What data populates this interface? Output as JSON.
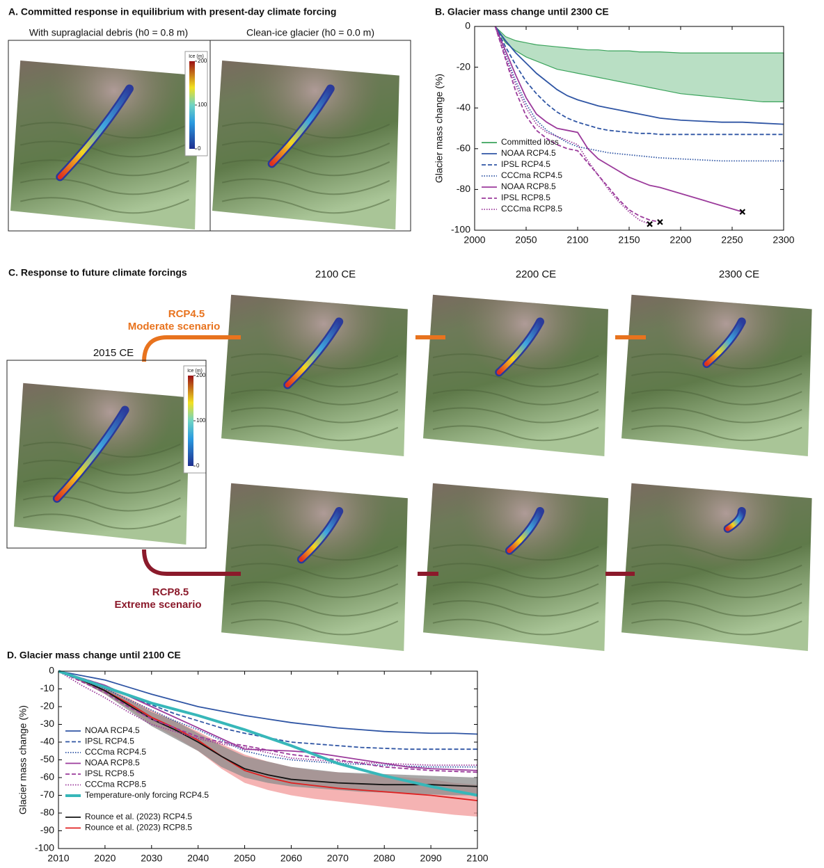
{
  "panel_a": {
    "title": "A. Committed response in equilibrium with present-day climate forcing",
    "subtitles": [
      "With supraglacial debris (h0 = 0.8 m)",
      "Clean-ice glacier (h0 = 0.0 m)"
    ],
    "colorbar": {
      "label": "Ice (m)",
      "ticks": [
        0,
        100,
        200
      ]
    }
  },
  "panel_c": {
    "title": "C. Response to future climate forcings",
    "start": "2015 CE",
    "columns": [
      "2100 CE",
      "2200 CE",
      "2300 CE"
    ],
    "scenarios": [
      {
        "name": "RCP4.5",
        "description": "Moderate scenario",
        "color": "#e8731e"
      },
      {
        "name": "RCP8.5",
        "description": "Extreme scenario",
        "color": "#8b1a2b"
      }
    ],
    "colorbar": {
      "label": "Ice (m)",
      "ticks": [
        0,
        100,
        200
      ]
    }
  },
  "chart_data": [
    {
      "type": "line",
      "title": "B. Glacier mass change until 2300 CE",
      "y_label": "Glacier mass change (%)",
      "x": [
        2020,
        2030,
        2040,
        2050,
        2060,
        2070,
        2080,
        2090,
        2100,
        2110,
        2120,
        2130,
        2140,
        2150,
        2160,
        2170,
        2180,
        2200,
        2220,
        2240,
        2260,
        2280,
        2300
      ],
      "xlim": [
        2000,
        2300
      ],
      "xticks": [
        2000,
        2050,
        2100,
        2150,
        2200,
        2250,
        2300
      ],
      "ylim": [
        -100,
        0
      ],
      "yticks": [
        -100,
        -80,
        -60,
        -40,
        -20,
        0
      ],
      "grid": false,
      "legend": "lower left",
      "series": [
        {
          "name": "Committed loss",
          "color": "#3aa35b",
          "band_color": "#b9dfc4",
          "dash": "solid",
          "upper": [
            0,
            -5,
            -7,
            -8,
            -9,
            -9.5,
            -10,
            -10.5,
            -11,
            -11.5,
            -11.5,
            -12,
            -12,
            -12,
            -12.5,
            -12.5,
            -12.5,
            -13,
            -13,
            -13,
            -13,
            -13,
            -13
          ],
          "lower": [
            0,
            -8,
            -12,
            -15,
            -17,
            -19,
            -21,
            -22,
            -23,
            -24,
            -25,
            -26,
            -27,
            -28,
            -29,
            -30,
            -31,
            -33,
            -34,
            -35,
            -36,
            -37,
            -37
          ]
        },
        {
          "name": "NOAA RCP4.5",
          "color": "#2f55a4",
          "dash": "solid",
          "values": [
            0,
            -7,
            -13,
            -18,
            -23,
            -27,
            -31,
            -34,
            -36,
            -37.5,
            -39,
            -40,
            -41,
            -42,
            -43,
            -44,
            -45,
            -46,
            -46.5,
            -47,
            -47,
            -47.5,
            -48
          ]
        },
        {
          "name": "IPSL RCP4.5",
          "color": "#2f55a4",
          "dash": "dashed",
          "values": [
            0,
            -10,
            -19,
            -27,
            -33,
            -38,
            -42,
            -45,
            -47,
            -48.5,
            -50,
            -51,
            -51.5,
            -52,
            -52.5,
            -52.5,
            -53,
            -53,
            -53,
            -53,
            -53,
            -53,
            -53
          ]
        },
        {
          "name": "CCCma RCP4.5",
          "color": "#2f55a4",
          "dash": "dotted",
          "values": [
            0,
            -14,
            -27,
            -38,
            -46,
            -51,
            -54,
            -57,
            -59,
            -60,
            -61,
            -62,
            -62.5,
            -63,
            -63.5,
            -64,
            -64.5,
            -65,
            -65.5,
            -66,
            -66,
            -66,
            -66
          ]
        },
        {
          "name": "NOAA RCP8.5",
          "color": "#9b3a9b",
          "dash": "solid",
          "end_marker": true,
          "values": [
            0,
            -12,
            -24,
            -35,
            -43,
            -47,
            -50,
            -51,
            -52,
            -60,
            -65,
            -68,
            -71,
            -74,
            -76,
            -78,
            -79,
            -82,
            -85,
            -88,
            -91,
            null,
            null
          ]
        },
        {
          "name": "IPSL RCP8.5",
          "color": "#9b3a9b",
          "dash": "dashed",
          "end_marker": true,
          "values": [
            0,
            -16,
            -32,
            -44,
            -51,
            -55,
            -58,
            -60,
            -61,
            -67,
            -73,
            -79,
            -85,
            -90,
            -93,
            -95,
            -96,
            null,
            null,
            null,
            null,
            null,
            null
          ]
        },
        {
          "name": "CCCma RCP8.5",
          "color": "#9b3a9b",
          "dash": "dotted",
          "end_marker": true,
          "values": [
            0,
            -15,
            -29,
            -40,
            -48,
            -52,
            -54,
            -56,
            -58,
            -66,
            -73,
            -80,
            -86,
            -91,
            -95,
            -97,
            null,
            null,
            null,
            null,
            null,
            null,
            null
          ]
        }
      ]
    },
    {
      "type": "line",
      "title": "D. Glacier mass change until 2100 CE",
      "y_label": "Glacier mass change (%)",
      "x": [
        2010,
        2015,
        2020,
        2025,
        2030,
        2035,
        2040,
        2045,
        2050,
        2055,
        2060,
        2065,
        2070,
        2075,
        2080,
        2085,
        2090,
        2095,
        2100
      ],
      "xlim": [
        2010,
        2100
      ],
      "xticks": [
        2010,
        2020,
        2030,
        2040,
        2050,
        2060,
        2070,
        2080,
        2090,
        2100
      ],
      "ylim": [
        -100,
        0
      ],
      "yticks": [
        -100,
        -90,
        -80,
        -70,
        -60,
        -50,
        -40,
        -30,
        -20,
        -10,
        0
      ],
      "grid": false,
      "legend": "lower left",
      "series": [
        {
          "name": "Rounce et al. (2023) RCP8.5",
          "color": "#e02020",
          "band_color": "#f29a9a",
          "dash": "solid",
          "legend_order": 9,
          "values": [
            0,
            -5,
            -11,
            -18,
            -26,
            -32,
            -39,
            -48,
            -56,
            -60,
            -63,
            -64.5,
            -66,
            -67,
            -68,
            -69,
            -70,
            -71.5,
            -73
          ],
          "upper": [
            0,
            -4,
            -9,
            -15,
            -22,
            -28,
            -34,
            -41,
            -47,
            -51,
            -54,
            -56,
            -57,
            -58,
            -59,
            -60,
            -61,
            -63,
            -64
          ],
          "lower": [
            0,
            -6,
            -13,
            -21,
            -30,
            -37,
            -45,
            -55,
            -63,
            -67,
            -70,
            -72,
            -73.5,
            -75,
            -76.5,
            -78,
            -79.5,
            -81,
            -82
          ]
        },
        {
          "name": "Rounce et al. (2023) RCP4.5",
          "color": "#111111",
          "band_color": "#8c8c8c",
          "dash": "solid",
          "legend_order": 8,
          "values": [
            0,
            -5,
            -11,
            -19,
            -27,
            -33,
            -40,
            -48,
            -55,
            -58.5,
            -61,
            -62,
            -63,
            -63.5,
            -64,
            -64,
            -64,
            -64.5,
            -65
          ],
          "upper": [
            0,
            -4,
            -9,
            -16,
            -23,
            -28,
            -35,
            -42,
            -48,
            -51,
            -54,
            -55.5,
            -57,
            -57.5,
            -58,
            -58.5,
            -59,
            -59.5,
            -60
          ],
          "lower": [
            0,
            -6,
            -13,
            -22,
            -31,
            -38,
            -45,
            -54,
            -60,
            -63,
            -65,
            -66,
            -67,
            -68,
            -68.5,
            -69,
            -69.5,
            -70,
            -70
          ]
        },
        {
          "name": "NOAA RCP4.5",
          "color": "#2f55a4",
          "dash": "solid",
          "legend_order": 0,
          "values": [
            0,
            -2.5,
            -5,
            -9,
            -13,
            -16.5,
            -20,
            -22.5,
            -25,
            -27,
            -29,
            -30.5,
            -32,
            -33,
            -34,
            -34.5,
            -35,
            -35,
            -35.5
          ]
        },
        {
          "name": "IPSL RCP4.5",
          "color": "#2f55a4",
          "dash": "dashed",
          "legend_order": 1,
          "values": [
            0,
            -4,
            -8,
            -14,
            -19,
            -24,
            -28,
            -32,
            -35,
            -37.5,
            -40,
            -41,
            -42,
            -43,
            -43.5,
            -44,
            -44,
            -44,
            -44
          ]
        },
        {
          "name": "CCCma RCP4.5",
          "color": "#2f55a4",
          "dash": "dotted",
          "legend_order": 2,
          "values": [
            0,
            -5,
            -10,
            -16,
            -22,
            -28,
            -33,
            -39,
            -45,
            -48,
            -50,
            -51,
            -52,
            -52.5,
            -53,
            -53.5,
            -54,
            -54,
            -54
          ]
        },
        {
          "name": "NOAA RCP8.5",
          "color": "#9b3a9b",
          "dash": "solid",
          "legend_order": 3,
          "values": [
            0,
            -4,
            -8,
            -14,
            -20,
            -26,
            -32,
            -38,
            -44,
            -44.5,
            -45,
            -46,
            -48,
            -50,
            -52,
            -54,
            -55,
            -55.5,
            -56
          ]
        },
        {
          "name": "IPSL RCP8.5",
          "color": "#9b3a9b",
          "dash": "dashed",
          "legend_order": 4,
          "values": [
            0,
            -6,
            -12,
            -20,
            -27,
            -32,
            -37,
            -40,
            -42,
            -44.5,
            -47,
            -48.5,
            -50,
            -52,
            -54,
            -55,
            -56,
            -56.5,
            -57
          ]
        },
        {
          "name": "CCCma RCP8.5",
          "color": "#9b3a9b",
          "dash": "dotted",
          "legend_order": 5,
          "values": [
            0,
            -8,
            -15,
            -23,
            -30,
            -34,
            -38,
            -41,
            -43,
            -46,
            -49,
            -50,
            -51,
            -51.5,
            -52,
            -52.5,
            -53,
            -53,
            -53
          ]
        },
        {
          "name": "Temperature-only forcing RCP4.5",
          "color": "#37b7b9",
          "dash": "solid",
          "thick": true,
          "legend_order": 6,
          "values": [
            0,
            -4.5,
            -9,
            -13.5,
            -18,
            -21.5,
            -25,
            -29,
            -33,
            -37.5,
            -42,
            -47,
            -52,
            -55.5,
            -59,
            -62,
            -65,
            -67.5,
            -70
          ]
        }
      ]
    }
  ]
}
